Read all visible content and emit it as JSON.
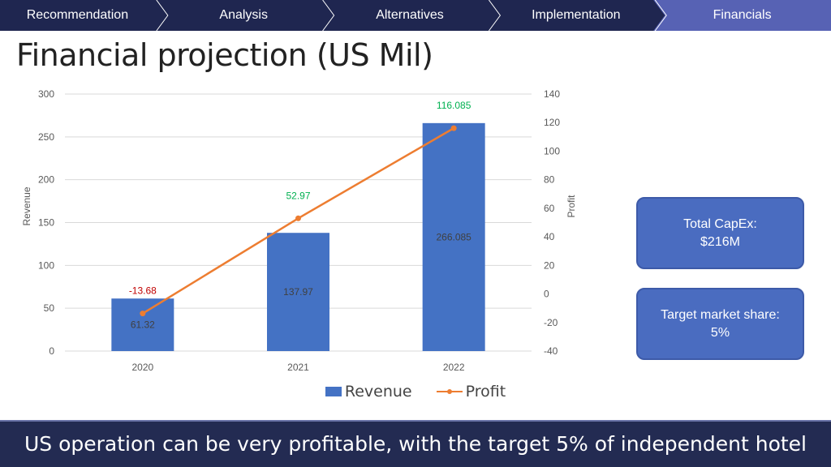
{
  "nav": {
    "items": [
      {
        "label": "Recommendation",
        "active": false
      },
      {
        "label": "Analysis",
        "active": false
      },
      {
        "label": "Alternatives",
        "active": false
      },
      {
        "label": "Implementation",
        "active": false
      },
      {
        "label": "Financials",
        "active": true
      }
    ],
    "colors": {
      "normal": "#1f2650",
      "active": "#5762b4",
      "separator": "#ffffff"
    }
  },
  "page_title": "Financial projection (US Mil)",
  "chart_data": {
    "type": "bar+line",
    "categories": [
      "2020",
      "2021",
      "2022"
    ],
    "series": [
      {
        "name": "Revenue",
        "type": "bar",
        "axis": "left",
        "values": [
          61.32,
          137.97,
          266.085
        ],
        "labels": [
          "61.32",
          "137.97",
          "266.085"
        ],
        "color": "#4472c4"
      },
      {
        "name": "Profit",
        "type": "line",
        "axis": "right",
        "values": [
          -13.68,
          52.97,
          116.085
        ],
        "labels": [
          "-13.68",
          "52.97",
          "116.085"
        ],
        "color": "#ed7d31",
        "label_colors": [
          "#c00000",
          "#00b050",
          "#00b050"
        ]
      }
    ],
    "ylabel": "Revenue",
    "y2label": "Profit",
    "ylim": [
      0,
      300
    ],
    "y2lim": [
      -40,
      140
    ],
    "yticks": [
      "0",
      "50",
      "100",
      "150",
      "200",
      "250",
      "300"
    ],
    "y2ticks": [
      "-40",
      "-20",
      "0",
      "20",
      "40",
      "60",
      "80",
      "100",
      "120",
      "140"
    ],
    "grid": true,
    "legend": "bottom"
  },
  "boxes": {
    "capex_line1": "Total CapEx:",
    "capex_line2": "$216M",
    "share_line1": "Target market share:",
    "share_line2": "5%"
  },
  "footer": "US operation can be very profitable, with the target 5% of independent hotel"
}
